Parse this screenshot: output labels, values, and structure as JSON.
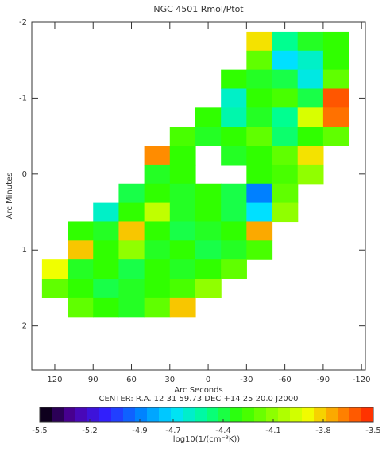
{
  "chart_data": {
    "type": "heatmap",
    "title": "NGC 4501 Rmol/Ptot",
    "x_label": "Arc Seconds",
    "y_label": "Arc Minutes",
    "subtitle": "CENTER:  R.A.  12 31 59.73    DEC  +14 25 20.0    J2000",
    "xlim": [
      138,
      -123
    ],
    "ylim": [
      2.58,
      -2
    ],
    "xticks": [
      120,
      90,
      60,
      30,
      0,
      -30,
      -60,
      -90,
      -120
    ],
    "yticks": [
      -2,
      -1,
      0,
      1,
      2
    ],
    "x": [
      120,
      100,
      80,
      60,
      40,
      20,
      0,
      -20,
      -40,
      -60,
      -80,
      -100
    ],
    "y": [
      -1.75,
      -1.5,
      -1.25,
      -1,
      -0.75,
      -0.5,
      -0.25,
      0,
      0.25,
      0.5,
      0.75,
      1,
      1.25,
      1.5,
      1.75
    ],
    "z": [
      [
        null,
        null,
        null,
        null,
        null,
        null,
        null,
        null,
        -3.85,
        -4.5,
        -4.35,
        -4.3
      ],
      [
        null,
        null,
        null,
        null,
        null,
        null,
        null,
        null,
        -4.2,
        -4.7,
        -4.6,
        -4.3
      ],
      [
        null,
        null,
        null,
        null,
        null,
        null,
        null,
        -4.3,
        -4.35,
        -4.4,
        -4.65,
        -4.2
      ],
      [
        null,
        null,
        null,
        null,
        null,
        null,
        null,
        -4.6,
        -4.3,
        -4.25,
        -4.4,
        -3.6
      ],
      [
        null,
        null,
        null,
        null,
        null,
        null,
        -4.3,
        -4.55,
        -4.35,
        -4.5,
        -3.95,
        -3.65
      ],
      [
        null,
        null,
        null,
        null,
        null,
        -4.25,
        -4.35,
        -4.3,
        -4.2,
        -4.45,
        -4.3,
        -4.2
      ],
      [
        null,
        null,
        null,
        null,
        -3.7,
        -4.3,
        null,
        -4.35,
        -4.3,
        -4.2,
        -3.85,
        null
      ],
      [
        null,
        null,
        null,
        null,
        -4.35,
        -4.3,
        null,
        null,
        -4.3,
        -4.25,
        -4.1,
        null
      ],
      [
        null,
        null,
        null,
        -4.4,
        -4.3,
        -4.35,
        -4.3,
        -4.4,
        -4.9,
        -4.2,
        null,
        null
      ],
      [
        null,
        null,
        -4.6,
        -4.3,
        -4.0,
        -4.35,
        -4.3,
        -4.4,
        -4.7,
        -4.1,
        null,
        null
      ],
      [
        null,
        -4.3,
        -4.35,
        -3.8,
        -4.3,
        -4.4,
        -4.35,
        -4.3,
        -3.75,
        null,
        null,
        null
      ],
      [
        null,
        -3.8,
        -4.3,
        -4.1,
        -4.35,
        -4.3,
        -4.4,
        -4.35,
        -4.25,
        null,
        null,
        null
      ],
      [
        -3.9,
        -4.35,
        -4.3,
        -4.4,
        -4.3,
        -4.35,
        -4.3,
        -4.2,
        null,
        null,
        null,
        null
      ],
      [
        -4.2,
        -4.3,
        -4.4,
        -4.35,
        -4.3,
        -4.25,
        -4.1,
        null,
        null,
        null,
        null,
        null
      ],
      [
        null,
        -4.2,
        -4.3,
        -4.35,
        -4.2,
        -3.8,
        null,
        null,
        null,
        null,
        null,
        null
      ]
    ],
    "colorbar": {
      "label": "log10(1/(cm⁻³K))",
      "lim": [
        -5.5,
        -3.5
      ],
      "ticks": [
        -5.5,
        -5.2,
        -4.9,
        -4.7,
        -4.4,
        -4.1,
        -3.8,
        -3.5
      ],
      "colors": [
        "#000000",
        "#5000a0",
        "#3020ff",
        "#0080ff",
        "#00e0ff",
        "#00ff90",
        "#30ff00",
        "#90ff00",
        "#f0ff00",
        "#ff8c00",
        "#ff2000"
      ]
    }
  }
}
